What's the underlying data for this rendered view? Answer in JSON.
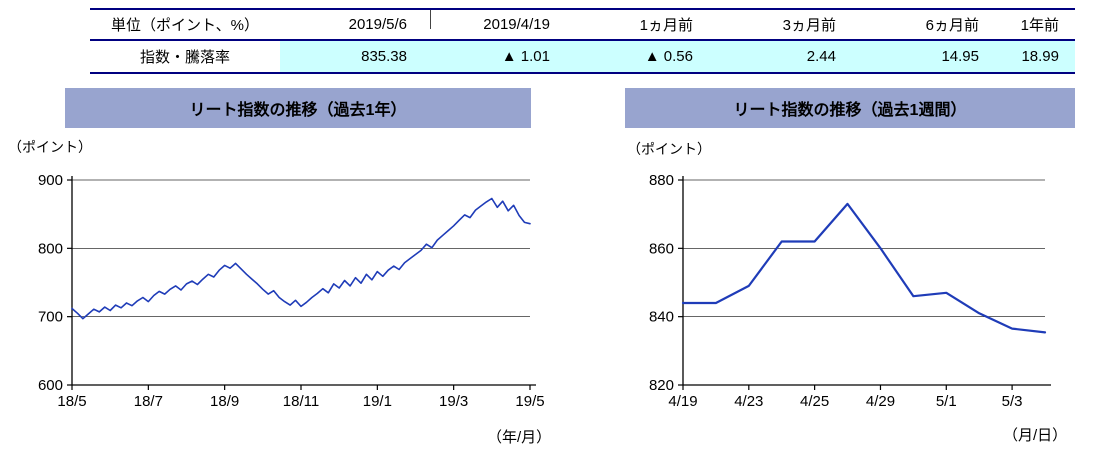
{
  "table": {
    "unit_label": "単位（ポイント、%）",
    "row_label": "指数・騰落率",
    "headers": [
      "2019/5/6",
      "2019/4/19",
      "1ヵ月前",
      "3ヵ月前",
      "6ヵ月前",
      "1年前"
    ],
    "values": [
      "835.38",
      "▲ 1.01",
      "▲ 0.56",
      "2.44",
      "14.95",
      "18.99"
    ],
    "value_bg": "#CCFFFF",
    "border_color": "#000080"
  },
  "colors": {
    "title_band": "#98A4CF",
    "line": "#1F3CB8",
    "axis": "#000000"
  },
  "chart_data": [
    {
      "type": "line",
      "name": "reit-index-1y",
      "title": "リート指数の推移（過去1年）",
      "unit_label": "（ポイント）",
      "x_caption": "（年/月）",
      "ylim": [
        600,
        900
      ],
      "yticks": [
        600,
        700,
        800,
        900
      ],
      "grid": true,
      "legend": "none",
      "xticks": [
        {
          "label": "18/5",
          "pos": 0
        },
        {
          "label": "18/7",
          "pos": 0.1667
        },
        {
          "label": "18/9",
          "pos": 0.3333
        },
        {
          "label": "18/11",
          "pos": 0.5
        },
        {
          "label": "19/1",
          "pos": 0.6667
        },
        {
          "label": "19/3",
          "pos": 0.8333
        },
        {
          "label": "19/5",
          "pos": 1
        }
      ],
      "line_color": "#1F3CB8",
      "values": [
        712,
        705,
        697,
        704,
        711,
        707,
        714,
        709,
        717,
        713,
        720,
        716,
        723,
        728,
        722,
        731,
        737,
        733,
        740,
        745,
        739,
        748,
        752,
        747,
        755,
        762,
        758,
        768,
        775,
        771,
        778,
        770,
        762,
        755,
        748,
        740,
        733,
        738,
        728,
        722,
        717,
        724,
        715,
        721,
        728,
        734,
        741,
        735,
        748,
        742,
        753,
        745,
        757,
        749,
        762,
        754,
        766,
        759,
        768,
        774,
        769,
        779,
        785,
        791,
        797,
        806,
        801,
        812,
        819,
        826,
        833,
        841,
        849,
        845,
        856,
        862,
        868,
        873,
        860,
        869,
        855,
        863,
        848,
        838,
        836
      ]
    },
    {
      "type": "line",
      "name": "reit-index-1w",
      "title": "リート指数の推移（過去1週間）",
      "unit_label": "（ポイント）",
      "x_caption": "（月/日）",
      "ylim": [
        820,
        880
      ],
      "yticks": [
        820,
        840,
        860,
        880
      ],
      "grid": true,
      "legend": "none",
      "x": [
        "4/19",
        "4/22",
        "4/23",
        "4/24",
        "4/25",
        "4/26",
        "4/29",
        "4/30",
        "5/1",
        "5/2",
        "5/3",
        "5/6"
      ],
      "xticks": [
        {
          "label": "4/19",
          "pos": 0
        },
        {
          "label": "4/23",
          "pos": 0.1818
        },
        {
          "label": "4/25",
          "pos": 0.3636
        },
        {
          "label": "4/29",
          "pos": 0.5455
        },
        {
          "label": "5/1",
          "pos": 0.7273
        },
        {
          "label": "5/3",
          "pos": 0.9091
        }
      ],
      "line_color": "#1F3CB8",
      "values": [
        844,
        844,
        849,
        862,
        862,
        873,
        860,
        846,
        847,
        841,
        836.5,
        835.4
      ]
    }
  ]
}
